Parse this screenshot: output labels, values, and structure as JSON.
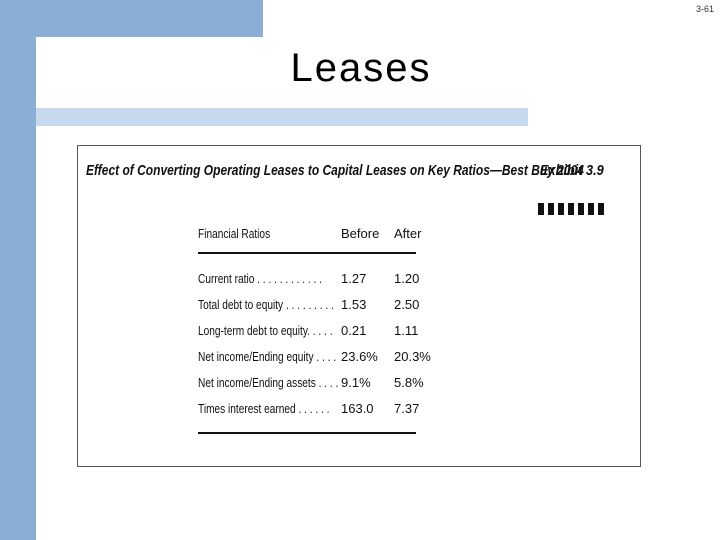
{
  "slide": {
    "number": "3-61",
    "title": "Leases"
  },
  "exhibit": {
    "title": "Effect of Converting Operating Leases to Capital Leases on Key Ratios—Best Buy 2004",
    "label": "Exhibit 3.9",
    "columns": [
      "Financial Ratios",
      "Before",
      "After"
    ],
    "rows": [
      {
        "ratio": "Current ratio . . . . . . . . . . . .",
        "before": "1.27",
        "after": "1.20"
      },
      {
        "ratio": "Total debt to equity . . . . . . . . .",
        "before": "1.53",
        "after": "2.50"
      },
      {
        "ratio": "Long-term debt to equity. . . . .",
        "before": "0.21",
        "after": "1.11"
      },
      {
        "ratio": "Net income/Ending equity . . . .",
        "before": "23.6%",
        "after": "20.3%"
      },
      {
        "ratio": "Net income/Ending assets . . . .",
        "before": "9.1%",
        "after": "5.8%"
      },
      {
        "ratio": "Times interest earned . . . . . .",
        "before": "163.0",
        "after": "7.37"
      }
    ]
  }
}
